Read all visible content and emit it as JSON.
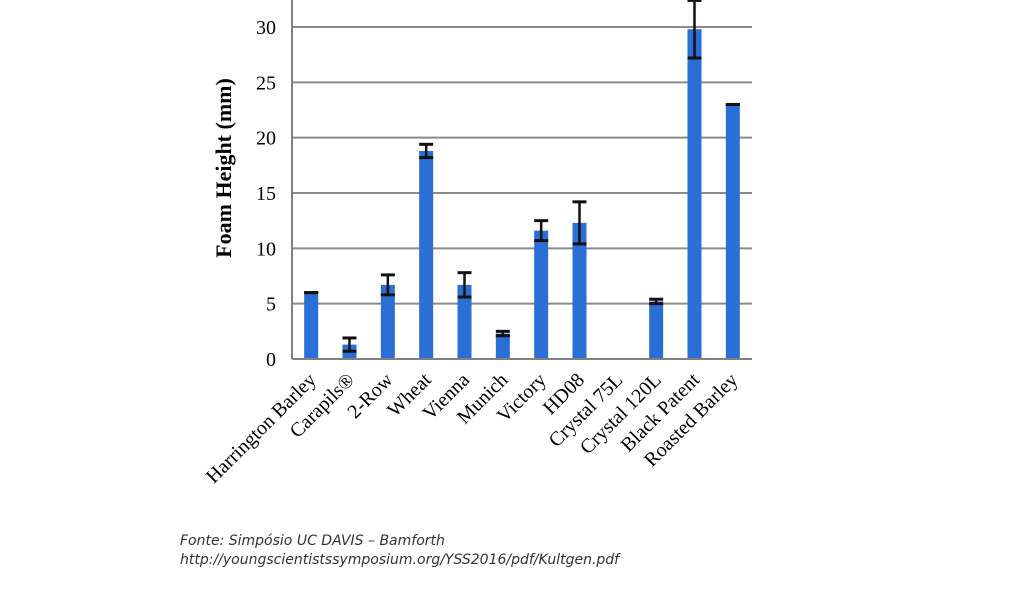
{
  "chart_data": {
    "type": "bar",
    "ylabel": "Foam Height (mm)",
    "ylim": [
      0,
      32
    ],
    "yticks": [
      0,
      5,
      10,
      15,
      20,
      25,
      30
    ],
    "grid": true,
    "bar_color": "#2a6fd6",
    "categories": [
      "Harrington Barley",
      "Carapils®",
      "2-Row",
      "Wheat",
      "Vienna",
      "Munich",
      "Victory",
      "HD08",
      "Crystal 75L",
      "Crystal 120L",
      "Black Patent",
      "Roasted Barley"
    ],
    "values": [
      6.0,
      1.3,
      6.7,
      18.8,
      6.7,
      2.3,
      11.6,
      12.3,
      0,
      5.2,
      29.8,
      23.0
    ],
    "errors": [
      0,
      0.6,
      0.9,
      0.6,
      1.1,
      0.2,
      0.9,
      1.9,
      0,
      0.2,
      2.6,
      0
    ]
  },
  "source": {
    "line1": "Fonte: Simpósio UC DAVIS – Bamforth",
    "line2": "http://youngscientistssymposium.org/YSS2016/pdf/Kultgen.pdf"
  }
}
